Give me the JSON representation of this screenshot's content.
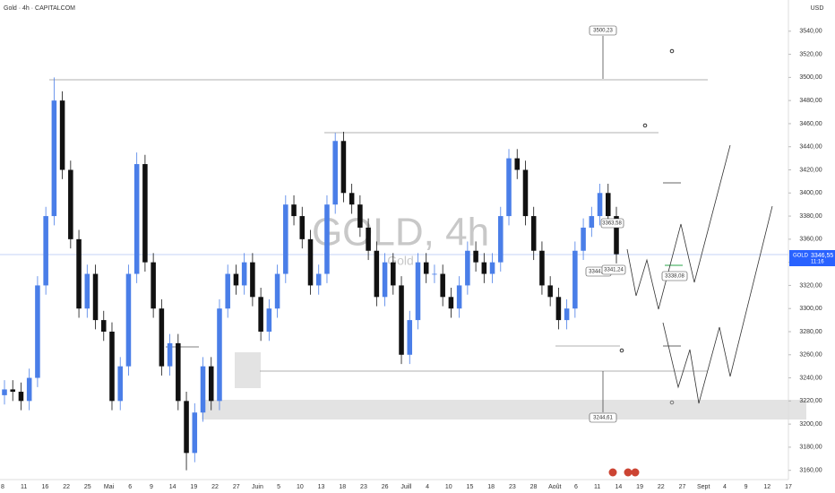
{
  "chart_data": {
    "type": "candlestick",
    "title": "Gold · 4h · CAPITALCOM",
    "currency": "USD",
    "watermark": "GOLD, 4h",
    "watermark_sub": "Gold",
    "price_tag": {
      "symbol": "GOLD",
      "price": "3346,55",
      "countdown": "11:16"
    },
    "annotations": [
      "3500,23",
      "3244,61",
      "3363,58",
      "3344,80",
      "3341,24",
      "3338,08"
    ],
    "up_color": "#4a7ee8",
    "down_color": "#111111",
    "ylim": [
      3152,
      3567
    ],
    "yticks": [
      {
        "value": 3160,
        "label": "3160,00"
      },
      {
        "value": 3180,
        "label": "3180,00"
      },
      {
        "value": 3200,
        "label": "3200,00"
      },
      {
        "value": 3220,
        "label": "3220,00"
      },
      {
        "value": 3240,
        "label": "3240,00"
      },
      {
        "value": 3260,
        "label": "3260,00"
      },
      {
        "value": 3280,
        "label": "3280,00"
      },
      {
        "value": 3300,
        "label": "3300,00"
      },
      {
        "value": 3320,
        "label": "3320,00"
      },
      {
        "value": 3340,
        "label": "3340,00"
      },
      {
        "value": 3360,
        "label": "3360,00"
      },
      {
        "value": 3380,
        "label": "3380,00"
      },
      {
        "value": 3400,
        "label": "3400,00"
      },
      {
        "value": 3420,
        "label": "3420,00"
      },
      {
        "value": 3440,
        "label": "3440,00"
      },
      {
        "value": 3460,
        "label": "3460,00"
      },
      {
        "value": 3480,
        "label": "3480,00"
      },
      {
        "value": 3500,
        "label": "3500,00"
      },
      {
        "value": 3520,
        "label": "3520,00"
      },
      {
        "value": 3540,
        "label": "3540,00"
      }
    ],
    "xtick_labels": [
      "8",
      "11",
      "16",
      "22",
      "25",
      "Mai",
      "6",
      "9",
      "14",
      "19",
      "22",
      "27",
      "Juin",
      "5",
      "10",
      "13",
      "18",
      "23",
      "26",
      "Juill",
      "4",
      "10",
      "15",
      "18",
      "23",
      "28",
      "Août",
      "6",
      "11",
      "14",
      "19",
      "22",
      "27",
      "Sept",
      "4",
      "9",
      "12",
      "17"
    ],
    "open": [
      3225,
      3230,
      3228,
      3220,
      3240,
      3320,
      3380,
      3480,
      3420,
      3360,
      3300,
      3330,
      3290,
      3280,
      3220,
      3250,
      3330,
      3425,
      3340,
      3300,
      3250,
      3270,
      3220,
      3175,
      3210,
      3250,
      3220,
      3300,
      3330,
      3320,
      3340,
      3310,
      3280,
      3300,
      3330,
      3390,
      3380,
      3360,
      3320,
      3330,
      3390,
      3445,
      3400,
      3390,
      3370,
      3350,
      3310,
      3340,
      3320,
      3260,
      3290,
      3340,
      3330,
      3330,
      3310,
      3300,
      3320,
      3350,
      3340,
      3330,
      3340,
      3380,
      3430,
      3420,
      3380,
      3350,
      3320,
      3310,
      3290,
      3300,
      3350,
      3370,
      3380,
      3400,
      3380
    ],
    "high": [
      3238,
      3238,
      3236,
      3248,
      3328,
      3388,
      3500,
      3488,
      3428,
      3368,
      3338,
      3338,
      3298,
      3288,
      3258,
      3338,
      3435,
      3433,
      3348,
      3308,
      3278,
      3278,
      3228,
      3218,
      3258,
      3258,
      3308,
      3338,
      3338,
      3348,
      3348,
      3318,
      3308,
      3338,
      3398,
      3398,
      3388,
      3368,
      3338,
      3398,
      3452,
      3453,
      3408,
      3398,
      3378,
      3358,
      3348,
      3348,
      3328,
      3298,
      3348,
      3348,
      3338,
      3338,
      3318,
      3328,
      3358,
      3358,
      3348,
      3348,
      3388,
      3438,
      3438,
      3428,
      3388,
      3358,
      3328,
      3318,
      3308,
      3358,
      3378,
      3388,
      3408,
      3408,
      3388
    ],
    "low": [
      3217,
      3220,
      3212,
      3212,
      3232,
      3312,
      3372,
      3412,
      3352,
      3292,
      3292,
      3282,
      3272,
      3212,
      3212,
      3242,
      3322,
      3332,
      3292,
      3242,
      3242,
      3212,
      3160,
      3167,
      3202,
      3212,
      3212,
      3292,
      3312,
      3312,
      3302,
      3272,
      3272,
      3292,
      3322,
      3372,
      3352,
      3312,
      3312,
      3322,
      3382,
      3392,
      3382,
      3362,
      3342,
      3302,
      3302,
      3312,
      3252,
      3252,
      3282,
      3322,
      3322,
      3302,
      3292,
      3292,
      3312,
      3332,
      3322,
      3322,
      3332,
      3372,
      3412,
      3372,
      3342,
      3312,
      3302,
      3282,
      3282,
      3292,
      3342,
      3362,
      3372,
      3372,
      3339
    ],
    "close": [
      3230,
      3228,
      3220,
      3240,
      3320,
      3380,
      3480,
      3420,
      3360,
      3300,
      3330,
      3290,
      3280,
      3220,
      3250,
      3330,
      3425,
      3340,
      3300,
      3250,
      3270,
      3220,
      3175,
      3210,
      3250,
      3220,
      3300,
      3330,
      3320,
      3340,
      3310,
      3280,
      3300,
      3330,
      3390,
      3380,
      3360,
      3320,
      3330,
      3390,
      3445,
      3400,
      3390,
      3370,
      3350,
      3310,
      3340,
      3320,
      3260,
      3290,
      3340,
      3330,
      3330,
      3310,
      3300,
      3320,
      3350,
      3340,
      3330,
      3340,
      3380,
      3430,
      3420,
      3380,
      3350,
      3320,
      3310,
      3290,
      3300,
      3350,
      3370,
      3380,
      3400,
      3380,
      3347
    ]
  }
}
